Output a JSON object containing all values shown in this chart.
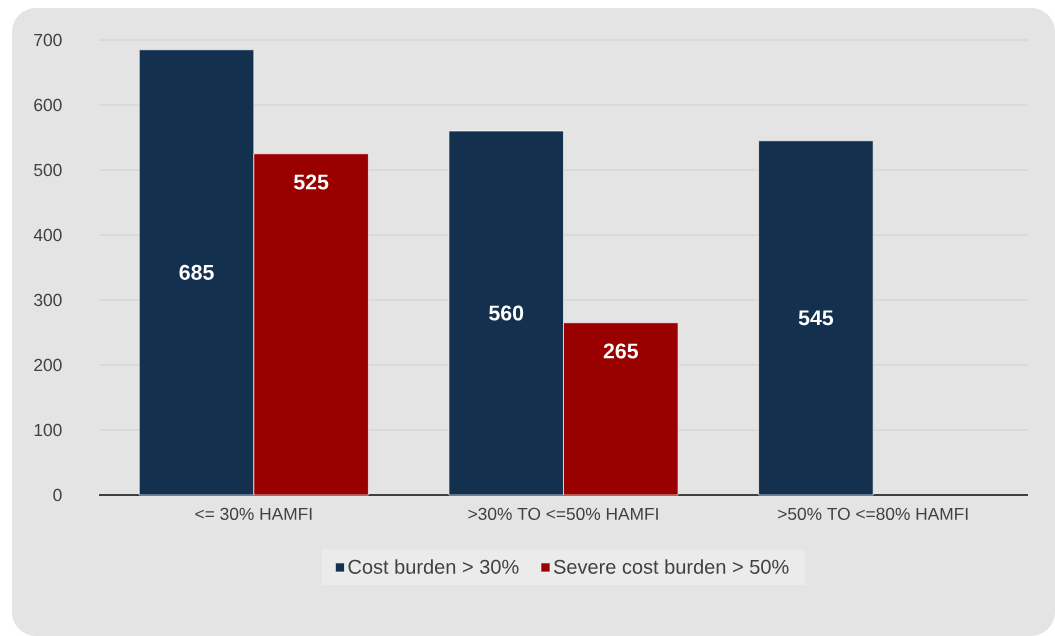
{
  "chart_data": {
    "type": "bar",
    "categories": [
      "<= 30% HAMFI",
      ">30% TO <=50% HAMFI",
      ">50% TO <=80% HAMFI"
    ],
    "series": [
      {
        "name": "Cost burden > 30%",
        "color": "#13304f",
        "values": [
          685,
          560,
          545
        ]
      },
      {
        "name": "Severe cost burden > 50%",
        "color": "#990000",
        "values": [
          525,
          265,
          null
        ]
      }
    ],
    "ylim": [
      0,
      700
    ],
    "yticks": [
      0,
      100,
      200,
      300,
      400,
      500,
      600,
      700
    ],
    "grid": "y",
    "legend": "bottom",
    "data_labels": true
  }
}
